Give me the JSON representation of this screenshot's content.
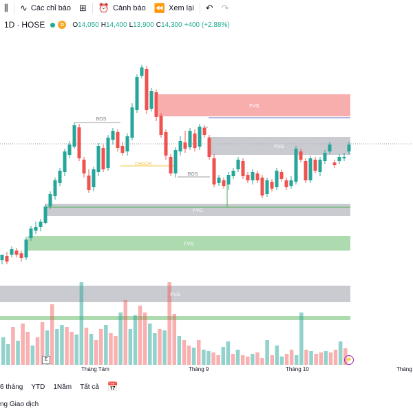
{
  "toolbar": {
    "indicators_label": "Các chỉ báo",
    "alert_label": "Cảnh báo",
    "replay_label": "Xem lại"
  },
  "legend": {
    "interval": "1D",
    "exchange": "HOSE",
    "badge": "D",
    "o_label": "O",
    "o": "14,050",
    "h_label": "H",
    "h": "14,400",
    "l_label": "L",
    "l": "13,900",
    "c_label": "C",
    "c": "14,300",
    "change": "+400 (+2.88%)"
  },
  "zones": {
    "fvg_label": "FVG",
    "bos_label": "BOS",
    "choch_label": "CHoCH"
  },
  "xaxis": {
    "ticks": [
      "Tháng Tám",
      "Tháng 9",
      "Tháng 10",
      "Tháng"
    ]
  },
  "ranges": [
    "6 tháng",
    "YTD",
    "1Năm",
    "Tất cả"
  ],
  "footer": {
    "label": "ng Giao dịch"
  },
  "markers": {
    "earnings": "E"
  },
  "colors": {
    "up": "#26a69a",
    "down": "#ef5350",
    "fvg_red": "#f8a5a5",
    "fvg_gray": "#b2b5be",
    "fvg_green": "#a5d6a7",
    "bos_line": "#9e9e9e",
    "choch": "#f5c542"
  }
}
